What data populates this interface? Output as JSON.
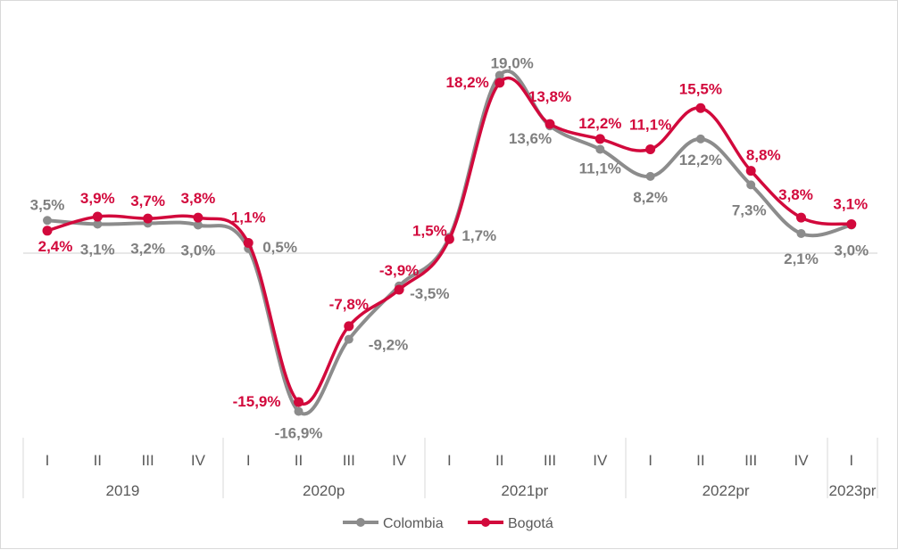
{
  "chart_data": {
    "type": "line",
    "quarters": [
      "I",
      "II",
      "III",
      "IV",
      "I",
      "II",
      "III",
      "IV",
      "I",
      "II",
      "III",
      "IV",
      "I",
      "II",
      "III",
      "IV",
      "I"
    ],
    "years": [
      "2019",
      "2020p",
      "2021pr",
      "2022pr",
      "2023pr"
    ],
    "ylim": [
      -20,
      25
    ],
    "grid": false,
    "legend_position": "bottom",
    "series": [
      {
        "name": "Colombia",
        "color": "#8c8c8c",
        "values": [
          3.5,
          3.1,
          3.2,
          3.0,
          0.5,
          -16.9,
          -9.2,
          -3.5,
          1.7,
          19.0,
          13.6,
          11.1,
          8.2,
          12.2,
          7.3,
          2.1,
          3.0
        ],
        "labels": [
          "3,5%",
          "3,1%",
          "3,2%",
          "3,0%",
          "0,5%",
          "-16,9%",
          "-9,2%",
          "-3,5%",
          "1,7%",
          "19,0%",
          "13,6%",
          "11,1%",
          "8,2%",
          "12,2%",
          "7,3%",
          "2,1%",
          "3,0%"
        ]
      },
      {
        "name": "Bogotá",
        "color": "#d2093c",
        "values": [
          2.4,
          3.9,
          3.7,
          3.8,
          1.1,
          -15.9,
          -7.8,
          -3.9,
          1.5,
          18.2,
          13.8,
          12.2,
          11.1,
          15.5,
          8.8,
          3.8,
          3.1
        ],
        "labels": [
          "2,4%",
          "3,9%",
          "3,7%",
          "3,8%",
          "1,1%",
          "-15,9%",
          "-7,8%",
          "-3,9%",
          "1,5%",
          "18,2%",
          "13,8%",
          "12,2%",
          "11,1%",
          "15,5%",
          "8,8%",
          "3,8%",
          "3,1%"
        ]
      }
    ]
  }
}
